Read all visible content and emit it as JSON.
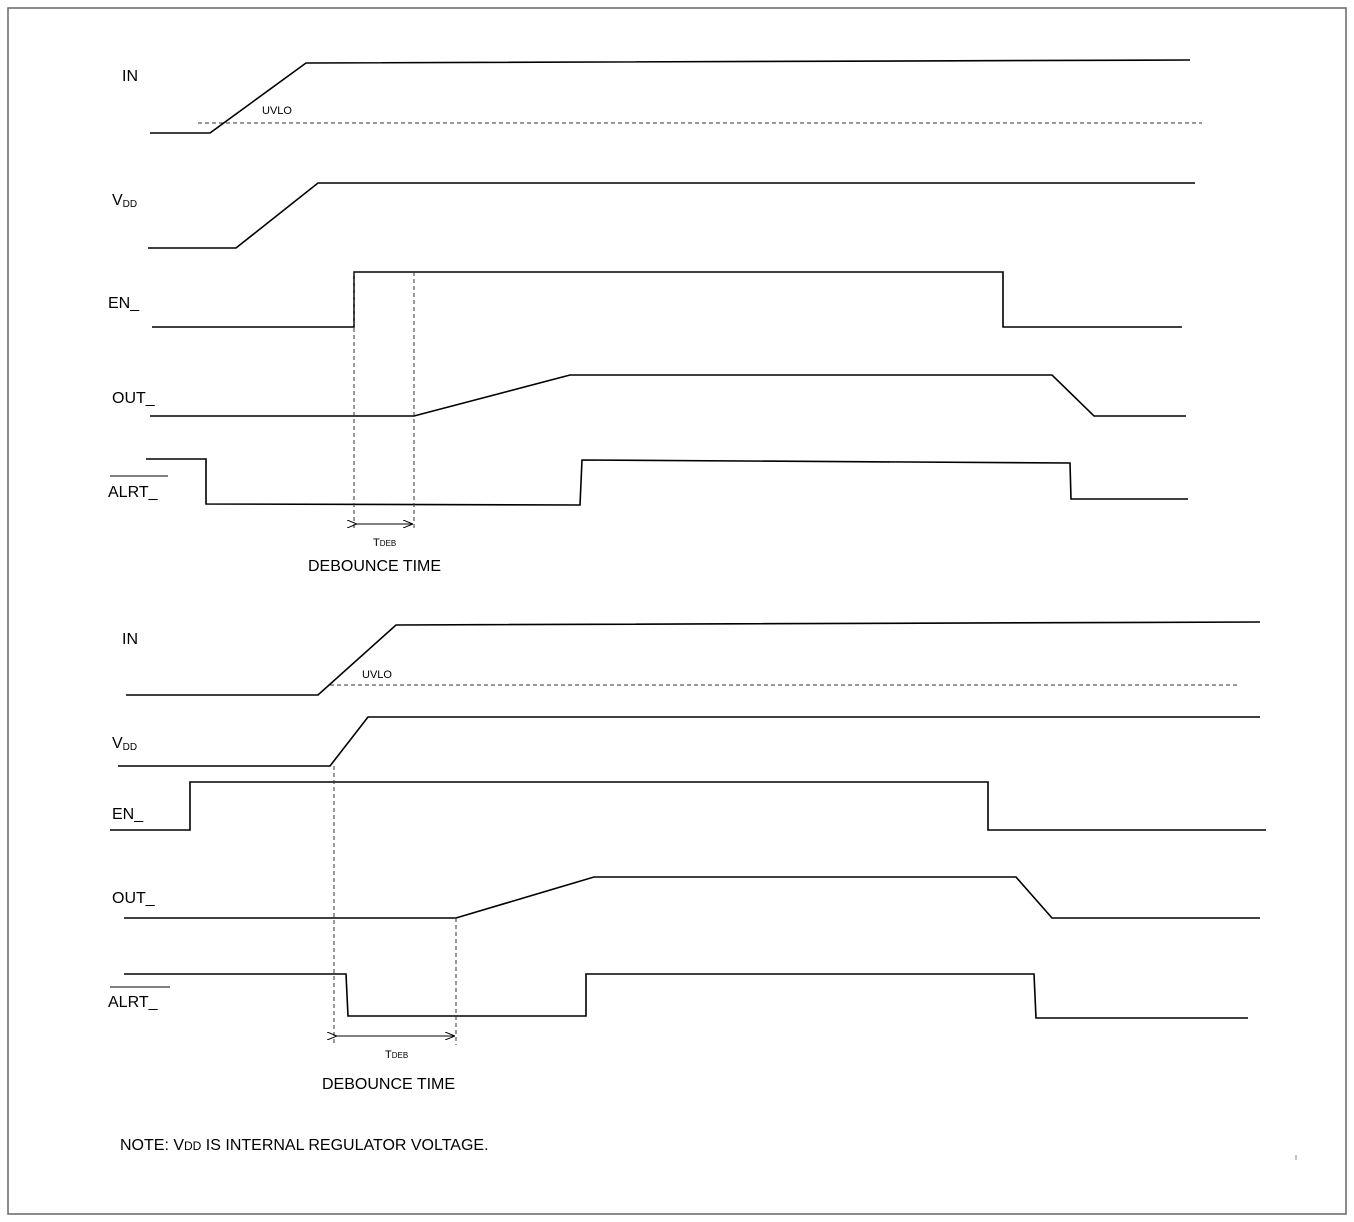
{
  "signals": {
    "in": "IN",
    "vdd_main": "V",
    "vdd_sub": "DD",
    "en": "EN_",
    "out": "OUT_",
    "alrt": "ALRT_"
  },
  "uvlo": "UVLO",
  "tdeb_main": "T",
  "tdeb_sub": "DEB",
  "debounce": "DEBOUNCE TIME",
  "note": {
    "prefix": "NOTE: V",
    "sub": "DD",
    "suffix": " IS INTERNAL REGULATOR VOLTAGE."
  }
}
